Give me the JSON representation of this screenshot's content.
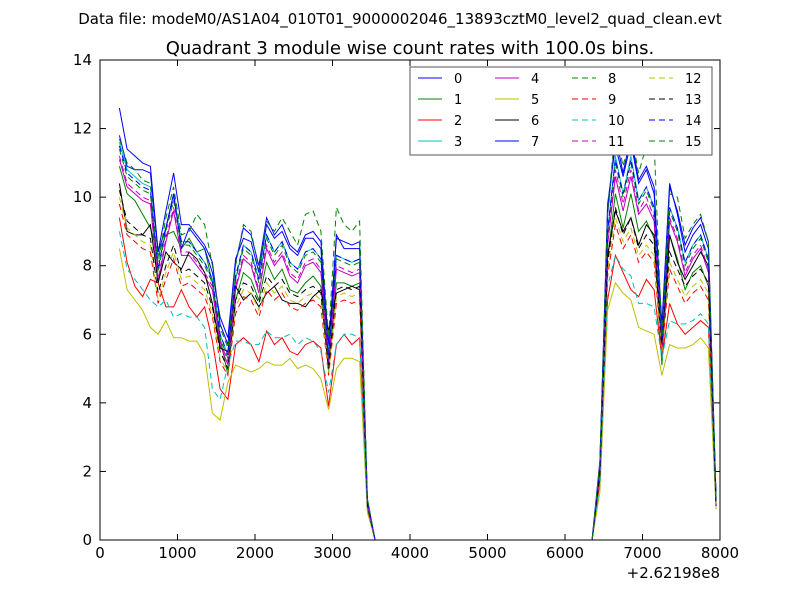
{
  "chart_data": {
    "type": "line",
    "suptitle": "Data file: modeM0/AS1A04_010T01_9000002046_13893cztM0_level2_quad_clean.evt",
    "title": "Quadrant 3 module wise count rates with 100.0s bins.",
    "xlabel": "",
    "ylabel": "",
    "x_offset_label": "+2.62198e8",
    "xlim": [
      0,
      8000
    ],
    "ylim": [
      0,
      14
    ],
    "xticks": [
      0,
      1000,
      2000,
      3000,
      4000,
      5000,
      6000,
      7000,
      8000
    ],
    "yticks": [
      0,
      2,
      4,
      6,
      8,
      10,
      12,
      14
    ],
    "legend_position": "top-right",
    "x": [
      250,
      350,
      450,
      550,
      650,
      750,
      850,
      950,
      1050,
      1150,
      1250,
      1350,
      1450,
      1550,
      1650,
      1750,
      1850,
      1950,
      2050,
      2150,
      2250,
      2350,
      2450,
      2550,
      2650,
      2750,
      2850,
      2950,
      3050,
      3150,
      3250,
      3350,
      3450,
      3550,
      6350,
      6450,
      6550,
      6650,
      6750,
      6850,
      6950,
      7050,
      7150,
      7250,
      7350,
      7450,
      7550,
      7650,
      7750,
      7850,
      7950
    ],
    "series": [
      {
        "name": "0",
        "color": "#0000ff",
        "dash": "solid",
        "values": [
          12.6,
          11.4,
          11.2,
          11.0,
          10.9,
          8.4,
          9.6,
          10.7,
          9.2,
          9.2,
          8.9,
          8.6,
          8.1,
          6.3,
          5.7,
          8.1,
          9.1,
          8.9,
          8.0,
          9.4,
          8.9,
          9.2,
          8.6,
          8.4,
          8.9,
          9.0,
          8.7,
          5.7,
          8.8,
          8.7,
          8.6,
          8.7,
          1.2,
          0,
          0,
          2.3,
          9.5,
          11.8,
          10.7,
          11.8,
          10.5,
          10.9,
          10.3,
          6.0,
          10.3,
          9.6,
          8.6,
          9.1,
          9.4,
          8.7,
          1.2
        ]
      },
      {
        "name": "1",
        "color": "#008000",
        "dash": "solid",
        "values": [
          10.9,
          10.1,
          9.9,
          9.5,
          9.1,
          8.3,
          8.9,
          9.0,
          8.5,
          8.8,
          8.4,
          8.5,
          7.5,
          5.9,
          4.8,
          7.0,
          7.8,
          7.6,
          7.0,
          8.1,
          7.6,
          7.9,
          7.3,
          7.2,
          7.5,
          7.7,
          7.4,
          4.9,
          7.5,
          7.5,
          7.4,
          7.5,
          1.0,
          0,
          0,
          2.0,
          8.2,
          10.1,
          9.1,
          10.1,
          9.0,
          9.3,
          8.8,
          5.1,
          8.9,
          8.2,
          7.3,
          7.8,
          8.0,
          7.4,
          1.0
        ]
      },
      {
        "name": "2",
        "color": "#ff0000",
        "dash": "solid",
        "values": [
          9.4,
          8.1,
          7.4,
          7.1,
          7.6,
          7.5,
          6.8,
          6.8,
          7.3,
          6.8,
          6.5,
          6.8,
          5.8,
          4.4,
          4.1,
          5.7,
          5.9,
          5.7,
          5.2,
          6.1,
          5.7,
          5.9,
          5.5,
          5.4,
          5.7,
          5.8,
          5.6,
          3.9,
          5.7,
          6.0,
          5.7,
          5.9,
          0.9,
          0,
          0,
          1.7,
          7.0,
          8.3,
          7.8,
          7.3,
          7.1,
          7.6,
          7.3,
          5.3,
          6.9,
          6.3,
          6.0,
          6.2,
          6.4,
          6.2,
          0.9
        ]
      },
      {
        "name": "3",
        "color": "#00bfbf",
        "dash": "solid",
        "values": [
          11.6,
          10.8,
          10.6,
          10.4,
          10.3,
          7.9,
          9.1,
          10.1,
          8.7,
          8.7,
          8.4,
          8.1,
          7.6,
          6.0,
          5.4,
          7.6,
          8.6,
          8.4,
          7.6,
          8.9,
          8.4,
          8.7,
          8.1,
          7.9,
          8.4,
          8.5,
          8.2,
          5.4,
          8.3,
          8.2,
          8.1,
          8.2,
          1.1,
          0,
          0,
          2.2,
          9.0,
          11.2,
          10.1,
          11.2,
          9.9,
          10.3,
          9.7,
          5.7,
          9.7,
          9.1,
          8.1,
          8.6,
          8.9,
          8.2,
          1.1
        ]
      },
      {
        "name": "4",
        "color": "#bf00bf",
        "dash": "solid",
        "values": [
          11.1,
          10.3,
          10.1,
          9.9,
          9.8,
          7.5,
          8.7,
          9.6,
          8.3,
          8.3,
          8.0,
          7.7,
          7.3,
          5.7,
          5.1,
          7.3,
          8.2,
          8.0,
          7.2,
          8.5,
          8.0,
          8.3,
          7.7,
          7.5,
          8.0,
          8.1,
          7.8,
          5.1,
          7.9,
          7.8,
          7.7,
          7.8,
          1.0,
          0,
          0,
          2.0,
          8.6,
          10.6,
          9.6,
          10.6,
          9.5,
          9.8,
          9.3,
          5.4,
          9.3,
          8.7,
          7.7,
          8.2,
          8.5,
          7.8,
          1.0
        ]
      },
      {
        "name": "5",
        "color": "#bfbf00",
        "dash": "solid",
        "values": [
          8.5,
          7.3,
          7.0,
          6.7,
          6.2,
          6.0,
          6.4,
          5.9,
          5.9,
          5.8,
          5.8,
          5.4,
          3.7,
          3.5,
          4.6,
          5.1,
          5.0,
          4.9,
          5.0,
          5.2,
          5.1,
          5.1,
          5.3,
          5.0,
          5.1,
          5.0,
          4.7,
          3.8,
          5.0,
          5.3,
          5.3,
          5.2,
          0.8,
          0,
          0,
          1.4,
          6.7,
          7.5,
          7.2,
          7.0,
          6.2,
          6.1,
          6.0,
          4.8,
          5.7,
          5.6,
          5.6,
          5.7,
          5.9,
          5.6,
          0.9
        ]
      },
      {
        "name": "6",
        "color": "#000000",
        "dash": "solid",
        "values": [
          10.4,
          9.0,
          8.9,
          8.9,
          9.2,
          7.5,
          8.4,
          8.1,
          7.9,
          8.4,
          8.2,
          7.8,
          6.9,
          5.6,
          5.5,
          7.4,
          7.0,
          7.2,
          6.8,
          7.2,
          7.4,
          7.0,
          6.9,
          6.9,
          6.8,
          7.1,
          7.3,
          6.1,
          7.2,
          7.3,
          7.4,
          7.3,
          1.0,
          0,
          0,
          1.9,
          8.3,
          9.6,
          9.0,
          9.4,
          8.6,
          9.2,
          8.9,
          5.6,
          8.9,
          8.1,
          7.6,
          8.0,
          8.4,
          8.0,
          1.0
        ]
      },
      {
        "name": "7",
        "color": "#0000ff",
        "dash": "solid",
        "values": [
          11.8,
          10.9,
          10.8,
          10.8,
          10.7,
          8.4,
          9.1,
          10.1,
          8.5,
          9.1,
          8.8,
          8.5,
          7.8,
          6.5,
          5.9,
          8.2,
          8.8,
          8.7,
          7.8,
          9.2,
          8.8,
          9.0,
          8.5,
          8.3,
          8.8,
          8.8,
          8.5,
          5.2,
          8.9,
          8.5,
          8.5,
          8.5,
          1.1,
          0,
          0,
          2.2,
          9.8,
          11.5,
          10.6,
          11.6,
          10.4,
          10.8,
          10.1,
          6.3,
          10.4,
          9.5,
          8.4,
          8.9,
          9.2,
          8.5,
          1.2
        ]
      },
      {
        "name": "8",
        "color": "#008000",
        "dash": "dashed",
        "values": [
          11.4,
          10.6,
          10.4,
          10.2,
          10.1,
          7.8,
          9.0,
          9.9,
          8.6,
          8.6,
          8.3,
          8.0,
          7.5,
          5.9,
          5.3,
          7.6,
          8.5,
          8.3,
          7.5,
          8.8,
          8.3,
          8.6,
          8.0,
          7.8,
          8.3,
          8.4,
          8.1,
          5.3,
          8.2,
          8.1,
          8.0,
          8.1,
          1.1,
          0,
          0,
          2.1,
          8.9,
          11.0,
          10.0,
          11.0,
          9.8,
          10.2,
          9.6,
          5.6,
          9.6,
          9.0,
          8.0,
          8.5,
          8.8,
          8.1,
          1.1
        ]
      },
      {
        "name": "9",
        "color": "#ff0000",
        "dash": "dashed",
        "values": [
          9.8,
          8.9,
          8.7,
          8.5,
          8.4,
          6.9,
          7.6,
          8.2,
          7.4,
          7.5,
          7.3,
          7.1,
          6.5,
          5.2,
          4.8,
          6.6,
          7.1,
          7.0,
          6.5,
          7.3,
          7.0,
          7.2,
          6.8,
          6.7,
          6.9,
          7.0,
          6.8,
          4.8,
          6.9,
          7.0,
          6.9,
          7.0,
          1.0,
          0,
          0,
          1.8,
          7.7,
          9.2,
          8.5,
          8.9,
          8.1,
          8.4,
          8.1,
          5.4,
          7.9,
          7.4,
          6.9,
          7.2,
          7.4,
          7.0,
          1.0
        ]
      },
      {
        "name": "10",
        "color": "#00bfbf",
        "dash": "dashed",
        "values": [
          9.0,
          7.9,
          7.6,
          7.3,
          7.0,
          6.8,
          7.0,
          6.5,
          6.6,
          6.5,
          6.5,
          6.2,
          4.4,
          4.1,
          5.1,
          5.8,
          5.8,
          5.7,
          5.7,
          6.1,
          5.9,
          5.9,
          6.0,
          5.7,
          5.9,
          5.8,
          5.5,
          4.3,
          5.7,
          6.0,
          6.0,
          5.9,
          0.9,
          0,
          0,
          1.6,
          7.4,
          8.3,
          7.9,
          7.7,
          6.9,
          6.9,
          6.8,
          5.3,
          6.4,
          6.3,
          6.3,
          6.4,
          6.6,
          6.3,
          1.0
        ]
      },
      {
        "name": "11",
        "color": "#bf00bf",
        "dash": "dashed",
        "values": [
          11.2,
          10.4,
          10.2,
          10.0,
          9.9,
          7.6,
          8.8,
          9.7,
          8.4,
          8.4,
          8.1,
          7.8,
          7.4,
          5.8,
          5.2,
          7.4,
          8.3,
          8.1,
          7.3,
          8.6,
          8.1,
          8.4,
          7.8,
          7.6,
          8.1,
          8.2,
          7.9,
          5.2,
          8.0,
          7.9,
          7.8,
          7.9,
          1.0,
          0,
          0,
          2.0,
          8.7,
          10.8,
          9.8,
          10.8,
          9.6,
          10.0,
          9.4,
          5.5,
          9.4,
          8.8,
          7.8,
          8.3,
          8.6,
          7.9,
          1.0
        ]
      },
      {
        "name": "12",
        "color": "#bfbf00",
        "dash": "dashed",
        "values": [
          10.0,
          9.1,
          8.9,
          8.7,
          8.6,
          7.0,
          7.8,
          8.4,
          7.6,
          7.7,
          7.5,
          7.3,
          6.6,
          5.3,
          4.9,
          6.8,
          7.3,
          7.2,
          6.7,
          7.5,
          7.2,
          7.4,
          7.0,
          6.9,
          7.1,
          7.2,
          7.0,
          4.9,
          7.1,
          7.2,
          7.1,
          7.2,
          1.0,
          0,
          0,
          1.9,
          7.9,
          9.4,
          8.7,
          9.1,
          8.3,
          8.6,
          8.3,
          5.5,
          8.1,
          7.6,
          7.1,
          7.4,
          7.6,
          7.2,
          1.0
        ]
      },
      {
        "name": "13",
        "color": "#000000",
        "dash": "dashed",
        "values": [
          10.2,
          9.3,
          9.1,
          8.9,
          8.8,
          7.2,
          8.0,
          8.6,
          7.8,
          7.9,
          7.7,
          7.5,
          6.8,
          5.5,
          5.0,
          7.0,
          7.5,
          7.4,
          6.9,
          7.7,
          7.4,
          7.6,
          7.2,
          7.1,
          7.3,
          7.4,
          7.2,
          5.0,
          7.3,
          7.4,
          7.3,
          7.4,
          1.0,
          0,
          0,
          1.9,
          8.1,
          9.7,
          8.9,
          9.4,
          8.5,
          8.9,
          8.6,
          5.7,
          8.4,
          7.9,
          7.4,
          7.7,
          7.9,
          7.5,
          1.0
        ]
      },
      {
        "name": "14",
        "color": "#0000ff",
        "dash": "dashed",
        "values": [
          11.5,
          10.7,
          10.5,
          10.3,
          10.2,
          7.9,
          9.1,
          10.0,
          8.7,
          8.7,
          8.4,
          8.1,
          7.6,
          6.0,
          5.4,
          7.7,
          8.6,
          8.4,
          7.6,
          8.9,
          8.4,
          8.7,
          8.1,
          7.9,
          8.4,
          8.5,
          8.2,
          5.4,
          8.3,
          8.2,
          8.1,
          8.2,
          1.1,
          0,
          0,
          2.2,
          9.0,
          11.1,
          10.1,
          11.1,
          9.9,
          10.3,
          9.7,
          5.7,
          9.7,
          9.1,
          8.1,
          8.6,
          8.9,
          8.2,
          1.1
        ]
      },
      {
        "name": "15",
        "color": "#008000",
        "dash": "dashed",
        "values": [
          11.7,
          11.0,
          10.8,
          10.5,
          10.4,
          8.1,
          9.4,
          10.3,
          8.9,
          9.0,
          9.5,
          9.2,
          8.0,
          6.2,
          5.6,
          8.0,
          9.2,
          9.0,
          7.9,
          9.3,
          9.0,
          9.4,
          9.0,
          8.6,
          9.5,
          9.6,
          9.0,
          5.9,
          9.7,
          9.2,
          9.0,
          9.3,
          1.2,
          0,
          0,
          2.3,
          9.6,
          12.0,
          10.9,
          11.9,
          10.7,
          11.5,
          11.6,
          5.9,
          10.1,
          10.0,
          8.8,
          9.2,
          9.5,
          8.7,
          1.2
        ]
      }
    ]
  }
}
